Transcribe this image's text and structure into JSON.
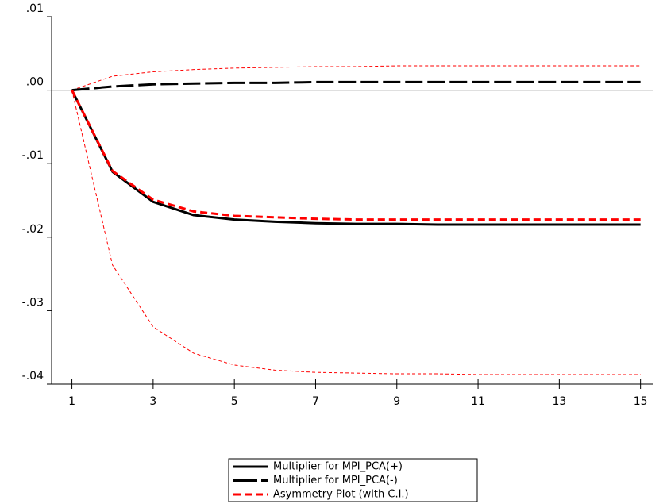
{
  "chart_data": {
    "type": "line",
    "x": [
      1,
      2,
      3,
      4,
      5,
      6,
      7,
      8,
      9,
      10,
      11,
      12,
      13,
      14,
      15
    ],
    "xlim": [
      0.5,
      15.3
    ],
    "xticks": [
      1,
      3,
      5,
      7,
      9,
      11,
      13,
      15
    ],
    "ylim": [
      -0.04,
      0.01
    ],
    "yticks": [
      {
        "value": 0.01,
        "label": ".01"
      },
      {
        "value": 0.0,
        "label": ".00"
      },
      {
        "value": -0.01,
        "label": "-.01"
      },
      {
        "value": -0.02,
        "label": "-.02"
      },
      {
        "value": -0.03,
        "label": "-.03"
      },
      {
        "value": -0.04,
        "label": "-.04"
      }
    ],
    "zero_line": true,
    "legend": "bottom",
    "series": [
      {
        "name": "Multiplier for MPI_PCA(+)",
        "color": "#000000",
        "dash": "solid",
        "width": 3,
        "values": [
          0,
          -0.0111,
          -0.0152,
          -0.017,
          -0.0176,
          -0.0179,
          -0.0181,
          -0.0182,
          -0.0182,
          -0.0183,
          -0.0183,
          -0.0183,
          -0.0183,
          -0.0183,
          -0.0183
        ]
      },
      {
        "name": "Multiplier for MPI_PCA(-)",
        "color": "#000000",
        "dash": "long",
        "width": 3,
        "values": [
          0,
          0.0005,
          0.0008,
          0.0009,
          0.001,
          0.001,
          0.0011,
          0.0011,
          0.0011,
          0.0011,
          0.0011,
          0.0011,
          0.0011,
          0.0011,
          0.0011
        ]
      },
      {
        "name": "Asymmetry Plot (with C.I.)",
        "color": "#ff0000",
        "dash": "short",
        "width": 3,
        "values": [
          0,
          -0.011,
          -0.0149,
          -0.0165,
          -0.0171,
          -0.0173,
          -0.0175,
          -0.0176,
          -0.0176,
          -0.0176,
          -0.0176,
          -0.0176,
          -0.0176,
          -0.0176,
          -0.0176
        ]
      }
    ],
    "bands": [
      {
        "color": "#ff0000",
        "values": [
          0,
          0.0019,
          0.0025,
          0.0028,
          0.003,
          0.0031,
          0.0032,
          0.0032,
          0.0033,
          0.0033,
          0.0033,
          0.0033,
          0.0033,
          0.0033,
          0.0033
        ]
      },
      {
        "color": "#ff0000",
        "values": [
          0,
          -0.0238,
          -0.0322,
          -0.0358,
          -0.0374,
          -0.0381,
          -0.0384,
          -0.0385,
          -0.0386,
          -0.0386,
          -0.0387,
          -0.0387,
          -0.0387,
          -0.0387,
          -0.0387
        ]
      }
    ]
  }
}
